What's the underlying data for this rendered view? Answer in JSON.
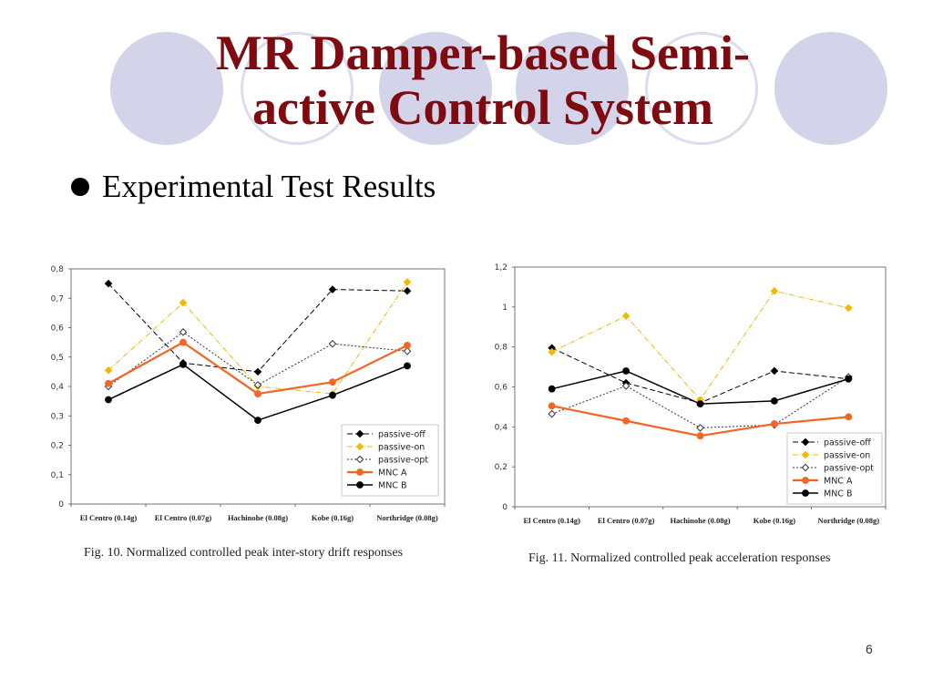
{
  "slide": {
    "title_line1": "MR Damper-based Semi-",
    "title_line2": "active Control System",
    "bullet": "Experimental Test Results",
    "page_number": "6",
    "title_color": "#7f0a10"
  },
  "captions": {
    "fig10": "Fig. 10. Normalized controlled peak inter-story drift responses",
    "fig11": "Fig. 11. Normalized controlled peak acceleration responses"
  },
  "chart_data": [
    {
      "type": "line",
      "title": "",
      "xlabel": "",
      "ylabel": "",
      "categories": [
        "El Centro (0.14g)",
        "El Centro (0.07g)",
        "Hachinohe (0.08g)",
        "Kobe (0.16g)",
        "Northridge (0.08g)"
      ],
      "ylim": [
        0,
        0.8
      ],
      "yticks": [
        0,
        0.1,
        0.2,
        0.3,
        0.4,
        0.5,
        0.6,
        0.7,
        0.8
      ],
      "ytick_labels": [
        "0",
        "0,1",
        "0,2",
        "0,3",
        "0,4",
        "0,5",
        "0,6",
        "0,7",
        "0,8"
      ],
      "grid": false,
      "legend_position": "bottom-right",
      "series": [
        {
          "name": "passive-off",
          "values": [
            0.75,
            0.48,
            0.45,
            0.73,
            0.725
          ],
          "color": "#000000",
          "dash": "6,3",
          "width": 1,
          "marker": "diamond-filled"
        },
        {
          "name": "passive-on",
          "values": [
            0.455,
            0.685,
            0.4,
            0.375,
            0.755
          ],
          "color": "#f5b800",
          "dash": "6,2,1,2",
          "width": 1,
          "marker": "diamond-filled"
        },
        {
          "name": "passive-opt",
          "values": [
            0.4,
            0.585,
            0.405,
            0.545,
            0.52
          ],
          "color": "#333333",
          "dash": "2,2",
          "width": 1,
          "marker": "diamond-open"
        },
        {
          "name": "MNC A",
          "values": [
            0.41,
            0.55,
            0.375,
            0.415,
            0.54
          ],
          "color": "#f26522",
          "dash": "",
          "width": 2.2,
          "marker": "circle-filled"
        },
        {
          "name": "MNC B",
          "values": [
            0.355,
            0.475,
            0.285,
            0.37,
            0.47
          ],
          "color": "#000000",
          "dash": "",
          "width": 1.5,
          "marker": "circle-filled"
        }
      ]
    },
    {
      "type": "line",
      "title": "",
      "xlabel": "",
      "ylabel": "",
      "categories": [
        "El Centro (0.14g)",
        "El Centro (0.07g)",
        "Hachinohe (0.08g)",
        "Kobe (0.16g)",
        "Northridge (0.08g)"
      ],
      "ylim": [
        0,
        1.2
      ],
      "yticks": [
        0,
        0.2,
        0.4,
        0.6,
        0.8,
        1.0,
        1.2
      ],
      "ytick_labels": [
        "0",
        "0,2",
        "0,4",
        "0,6",
        "0,8",
        "1",
        "1,2"
      ],
      "grid": false,
      "legend_position": "bottom-right",
      "series": [
        {
          "name": "passive-off",
          "values": [
            0.795,
            0.62,
            0.52,
            0.68,
            0.64
          ],
          "color": "#000000",
          "dash": "6,3",
          "width": 1,
          "marker": "diamond-filled"
        },
        {
          "name": "passive-on",
          "values": [
            0.775,
            0.955,
            0.535,
            1.08,
            0.995
          ],
          "color": "#f5b800",
          "dash": "6,2,1,2",
          "width": 1,
          "marker": "diamond-filled"
        },
        {
          "name": "passive-opt",
          "values": [
            0.465,
            0.605,
            0.395,
            0.41,
            0.65
          ],
          "color": "#333333",
          "dash": "2,2",
          "width": 1,
          "marker": "diamond-open"
        },
        {
          "name": "MNC A",
          "values": [
            0.505,
            0.43,
            0.355,
            0.415,
            0.45
          ],
          "color": "#f26522",
          "dash": "",
          "width": 2.2,
          "marker": "circle-filled"
        },
        {
          "name": "MNC B",
          "values": [
            0.59,
            0.68,
            0.515,
            0.53,
            0.64
          ],
          "color": "#000000",
          "dash": "",
          "width": 1.5,
          "marker": "circle-filled"
        }
      ]
    }
  ]
}
